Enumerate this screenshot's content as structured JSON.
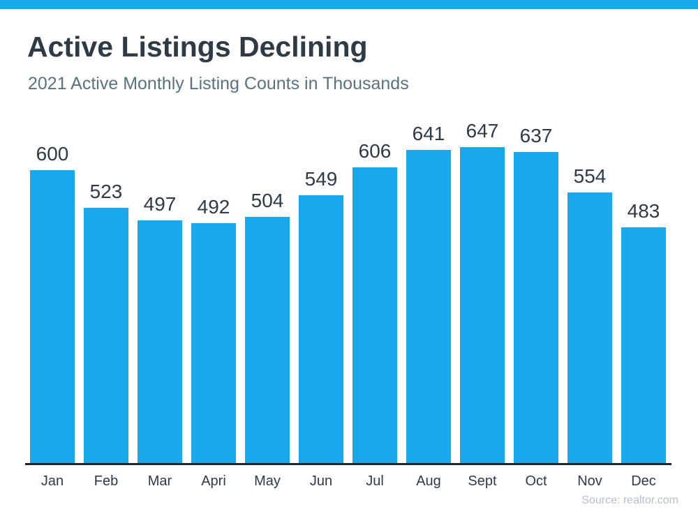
{
  "page": {
    "accent_bar_color": "#18a9ec",
    "background_color": "#ffffff"
  },
  "header": {
    "title": "Active Listings Declining",
    "subtitle": "2021 Active Monthly Listing Counts in Thousands",
    "title_color": "#2e3a45",
    "subtitle_color": "#59727e"
  },
  "chart_data": {
    "type": "bar",
    "title": "Active Listings Declining",
    "subtitle": "2021 Active Monthly Listing Counts in Thousands",
    "categories": [
      "Jan",
      "Feb",
      "Mar",
      "Apri",
      "May",
      "Jun",
      "Jul",
      "Aug",
      "Sept",
      "Oct",
      "Nov",
      "Dec"
    ],
    "values": [
      600,
      523,
      497,
      492,
      504,
      549,
      606,
      641,
      647,
      637,
      554,
      483
    ],
    "xlabel": "",
    "ylabel": "",
    "ylim": [
      0,
      714
    ],
    "grid": false,
    "legend": false,
    "data_labels_shown": true,
    "bar_color": "#18a9ec",
    "value_label_color": "#2e3a45",
    "month_label_color": "#2e3a45",
    "axis_line_color": "#20262d"
  },
  "footer": {
    "source": "Source: realtor.com",
    "source_color": "#b4c1c9"
  }
}
